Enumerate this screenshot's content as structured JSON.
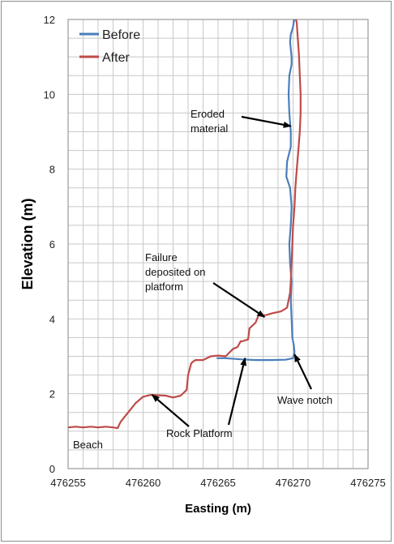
{
  "chart_data": {
    "type": "line",
    "xlabel": "Easting (m)",
    "ylabel": "Elevation (m)",
    "xlim": [
      476255,
      476275
    ],
    "ylim": [
      0,
      12
    ],
    "xticks": [
      476255,
      476260,
      476265,
      476270,
      476275
    ],
    "yticks": [
      0,
      2,
      4,
      6,
      8,
      10,
      12
    ],
    "grid": true,
    "legend_position": "top-left",
    "series": [
      {
        "name": "Before",
        "color": "#4a7ebb",
        "x": [
          476264.9,
          476265.5,
          476266.5,
          476267.5,
          476268.5,
          476269.5,
          476270.0,
          476270.1,
          476270.05,
          476269.95,
          476269.9,
          476269.85,
          476269.9,
          476269.8,
          476269.75,
          476269.85,
          476269.9,
          476269.8,
          476269.55,
          476269.6,
          476269.85,
          476269.85,
          476269.75,
          476269.7,
          476269.75,
          476269.9,
          476269.9,
          476269.85,
          476269.8,
          476269.85,
          476270.0,
          476270.05,
          476270.1
        ],
        "y": [
          2.95,
          2.95,
          2.92,
          2.9,
          2.9,
          2.91,
          2.95,
          3.1,
          3.3,
          3.5,
          4.0,
          4.5,
          5.0,
          5.5,
          6.0,
          6.5,
          7.0,
          7.5,
          7.8,
          8.2,
          8.6,
          9.0,
          9.5,
          10.0,
          10.5,
          10.8,
          11.0,
          11.2,
          11.4,
          11.6,
          11.8,
          11.95,
          12.0
        ]
      },
      {
        "name": "After",
        "color": "#be4b48",
        "x": [
          476255.0,
          476255.5,
          476256.0,
          476256.5,
          476257.0,
          476257.5,
          476258.0,
          476258.3,
          476258.5,
          476258.7,
          476259.0,
          476259.5,
          476260.0,
          476260.5,
          476261.0,
          476261.5,
          476262.0,
          476262.5,
          476262.9,
          476263.0,
          476263.2,
          476263.3,
          476263.5,
          476264.0,
          476264.5,
          476265.0,
          476265.5,
          476266.0,
          476266.3,
          476266.5,
          476266.6,
          476267.0,
          476267.1,
          476267.5,
          476267.7,
          476267.9,
          476268.2,
          476268.6,
          476269.2,
          476269.6,
          476269.8,
          476269.85,
          476269.9,
          476269.95,
          476270.0,
          476270.1,
          476270.15,
          476270.25,
          476270.35,
          476270.45,
          476270.5,
          476270.5,
          476270.45,
          476270.4,
          476270.35,
          476270.3,
          476270.25,
          476270.2
        ],
        "y": [
          1.1,
          1.12,
          1.1,
          1.12,
          1.1,
          1.12,
          1.1,
          1.08,
          1.25,
          1.35,
          1.5,
          1.75,
          1.92,
          1.97,
          1.96,
          1.95,
          1.9,
          1.95,
          2.1,
          2.5,
          2.8,
          2.85,
          2.9,
          2.9,
          3.0,
          3.02,
          3.0,
          3.2,
          3.25,
          3.4,
          3.4,
          3.45,
          3.75,
          3.9,
          4.1,
          4.1,
          4.1,
          4.15,
          4.2,
          4.3,
          4.7,
          5.0,
          5.5,
          6.0,
          6.5,
          7.0,
          7.5,
          8.0,
          8.5,
          9.0,
          9.5,
          10.0,
          10.5,
          11.0,
          11.3,
          11.6,
          11.9,
          12.0
        ]
      }
    ],
    "annotations": [
      {
        "lines": [
          "Eroded",
          "material"
        ],
        "target": [
          476269.85,
          9.15
        ]
      },
      {
        "lines": [
          "Failure",
          "deposited on",
          "platform"
        ],
        "target": [
          476268.1,
          4.05
        ]
      },
      {
        "lines": [
          "Rock Platform"
        ],
        "target": [
          476260.6,
          1.97
        ]
      },
      {
        "lines": [
          "Rock Platform"
        ],
        "target": [
          476266.8,
          2.95
        ]
      },
      {
        "lines": [
          "Wave notch"
        ],
        "target": [
          476270.1,
          3.05
        ]
      },
      {
        "lines": [
          "Beach"
        ],
        "target": null
      }
    ]
  }
}
